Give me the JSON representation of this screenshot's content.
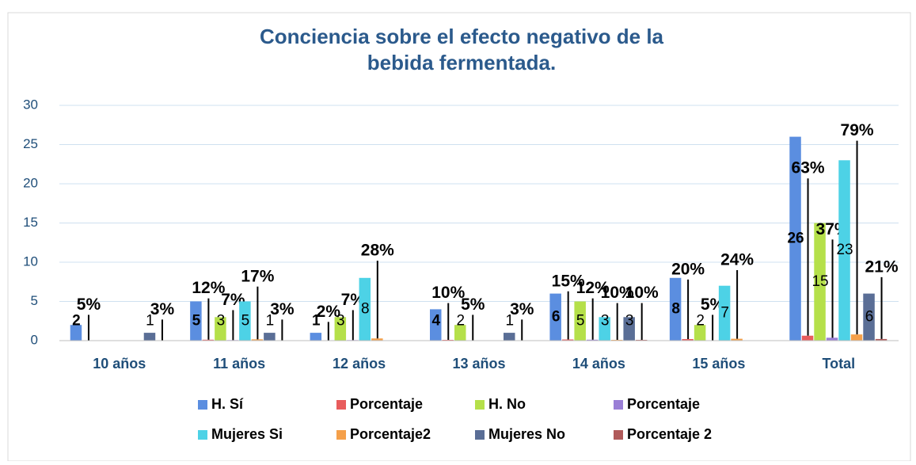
{
  "chart_data": {
    "type": "bar",
    "title": "Conciencia sobre el efecto negativo de la bebida fermentada.",
    "categories": [
      "10 años",
      "11 años",
      "12 años",
      "13 años",
      "14 años",
      "15 años",
      "Total"
    ],
    "series": [
      {
        "name": "H. Sí",
        "color": "#5b8ee0",
        "values": [
          2,
          5,
          1,
          4,
          6,
          8,
          26
        ]
      },
      {
        "name": "Porcentaje",
        "color": "#e85c5c",
        "values": [
          0.05,
          0.12,
          0.02,
          0.1,
          0.15,
          0.2,
          0.63
        ],
        "value_labels": [
          "5%",
          "12%",
          "2%",
          "10%",
          "15%",
          "20%",
          "63%"
        ]
      },
      {
        "name": "H. No",
        "color": "#b5e04a",
        "values": [
          null,
          3,
          3,
          2,
          5,
          2,
          15
        ]
      },
      {
        "name": "Porcentaje",
        "color": "#9a7fd6",
        "values": [
          null,
          0.07,
          0.07,
          0.05,
          0.12,
          0.05,
          0.37
        ],
        "value_labels": [
          null,
          "7%",
          "7%",
          "5%",
          "12%",
          "5%",
          "37%"
        ]
      },
      {
        "name": "Mujeres Si",
        "color": "#4dd2e6",
        "values": [
          null,
          5,
          8,
          null,
          3,
          7,
          23
        ]
      },
      {
        "name": "Porcentaje2",
        "color": "#f5a04a",
        "values": [
          null,
          0.17,
          0.28,
          null,
          0.1,
          0.24,
          0.79
        ],
        "value_labels": [
          null,
          "17%",
          "28%",
          null,
          "10%",
          "24%",
          "79%"
        ]
      },
      {
        "name": "Mujeres No",
        "color": "#5a6e96",
        "values": [
          1,
          1,
          null,
          1,
          3,
          null,
          6
        ]
      },
      {
        "name": "Porcentaje 2",
        "color": "#b05a5a",
        "values": [
          0.03,
          0.03,
          null,
          0.03,
          0.1,
          null,
          0.21
        ],
        "value_labels": [
          "3%",
          "3%",
          null,
          "3%",
          "10%",
          null,
          "21%"
        ]
      }
    ],
    "ylim": [
      0,
      30
    ],
    "yticks": [
      0,
      5,
      10,
      15,
      20,
      25,
      30
    ],
    "grid": true,
    "legend": "bottom"
  }
}
